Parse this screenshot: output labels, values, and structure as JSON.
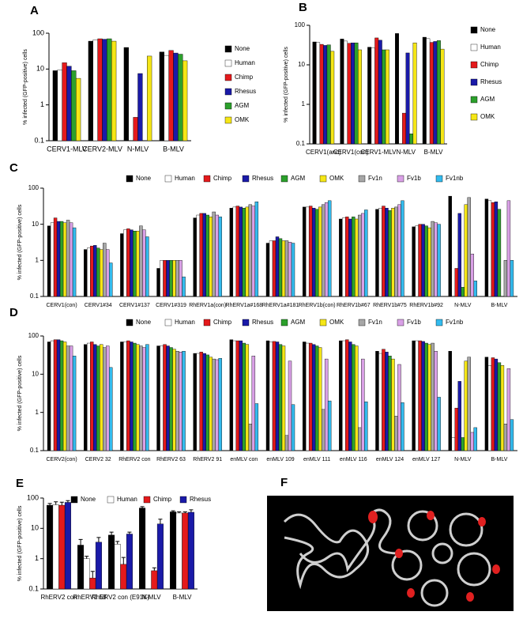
{
  "chart_data": [
    {
      "type": "bar",
      "panel": "A",
      "y_label": "% infected (GFP-positive) cells",
      "log": true,
      "legend": "right",
      "ylim": [
        0.1,
        100
      ],
      "yticks": [
        0.1,
        1,
        10,
        100
      ],
      "categories": [
        "CERV1-MLV",
        "CERV2-MLV",
        "N-MLV",
        "B-MLV"
      ],
      "series": [
        {
          "name": "None",
          "color": "#000000",
          "values": [
            9,
            60,
            40,
            30
          ]
        },
        {
          "name": "Human",
          "color": "#ffffff",
          "values": [
            9.5,
            65,
            null,
            24
          ]
        },
        {
          "name": "Chimp",
          "color": "#e41a1c",
          "values": [
            15,
            70,
            0.45,
            33
          ]
        },
        {
          "name": "Rhesus",
          "color": "#1a1aa8",
          "values": [
            12,
            68,
            7.5,
            28
          ]
        },
        {
          "name": "AGM",
          "color": "#2ca02c",
          "values": [
            9,
            70,
            null,
            26
          ]
        },
        {
          "name": "OMK",
          "color": "#f5e616",
          "values": [
            5.5,
            60,
            23,
            17
          ]
        }
      ]
    },
    {
      "type": "bar",
      "panel": "B",
      "y_label": "% infected (GFP-positive) cells",
      "log": true,
      "legend": "right",
      "ylim": [
        0.1,
        100
      ],
      "yticks": [
        0.1,
        1,
        10,
        100
      ],
      "categories": [
        "CERV1(anc)",
        "CERV1(con)",
        "CERV1-MLV",
        "N-MLV",
        "B-MLV"
      ],
      "series": [
        {
          "name": "None",
          "color": "#000000",
          "values": [
            38,
            45,
            28,
            62,
            50
          ]
        },
        {
          "name": "Human",
          "color": "#ffffff",
          "values": [
            37,
            40,
            27,
            null,
            46
          ]
        },
        {
          "name": "Chimp",
          "color": "#e41a1c",
          "values": [
            33,
            35,
            48,
            0.6,
            37
          ]
        },
        {
          "name": "Rhesus",
          "color": "#1a1aa8",
          "values": [
            31,
            36,
            42,
            20,
            39
          ]
        },
        {
          "name": "AGM",
          "color": "#2ca02c",
          "values": [
            32,
            36,
            24,
            0.18,
            41
          ]
        },
        {
          "name": "OMK",
          "color": "#f5e616",
          "values": [
            22,
            24,
            24,
            36,
            25
          ]
        }
      ]
    },
    {
      "type": "bar",
      "panel": "C",
      "y_label": "% infected (GFP-positive) cells",
      "log": true,
      "legend": "top",
      "ylim": [
        0.1,
        100
      ],
      "yticks": [
        0.1,
        1,
        10,
        100
      ],
      "categories": [
        "CERV1(con)",
        "CERV1#34",
        "CERV1#137",
        "CERV1#319",
        "RhERV1a(con)",
        "RhERV1a#168",
        "RhERV1a#181",
        "RhERV1b(con)",
        "RhERV1b#67",
        "RhERV1b#75",
        "RhERV1b#92",
        "N-MLV",
        "B-MLV"
      ],
      "series": [
        {
          "name": "None",
          "color": "#000000",
          "values": [
            9,
            2,
            5.5,
            0.6,
            15,
            28,
            3,
            30,
            14,
            26,
            8.5,
            60,
            50
          ]
        },
        {
          "name": "Human",
          "color": "#ffffff",
          "values": [
            11,
            2.2,
            7,
            1,
            18,
            30,
            3.5,
            30,
            15,
            28,
            9,
            null,
            45
          ]
        },
        {
          "name": "Chimp",
          "color": "#e41a1c",
          "values": [
            15,
            2.5,
            7.5,
            1,
            20,
            32,
            3.5,
            32,
            16,
            32,
            10,
            0.6,
            40
          ]
        },
        {
          "name": "Rhesus",
          "color": "#1a1aa8",
          "values": [
            12,
            2.6,
            7,
            1,
            20,
            30,
            4.5,
            28,
            14,
            28,
            10,
            20,
            42
          ]
        },
        {
          "name": "AGM",
          "color": "#2ca02c",
          "values": [
            12,
            2.2,
            6.5,
            1,
            18,
            28,
            4,
            26,
            16,
            24,
            9,
            0.18,
            26
          ]
        },
        {
          "name": "OMK",
          "color": "#f5e616",
          "values": [
            11,
            2,
            6.5,
            1,
            16,
            30,
            3.5,
            30,
            14,
            28,
            8,
            35,
            null
          ]
        },
        {
          "name": "Fv1n",
          "color": "#a6a6a6",
          "values": [
            13,
            3,
            9,
            1,
            22,
            35,
            3.5,
            35,
            18,
            30,
            12,
            55,
            1
          ]
        },
        {
          "name": "Fv1b",
          "color": "#d9a0e6",
          "values": [
            11,
            2,
            7,
            1,
            18,
            32,
            3.2,
            40,
            20,
            35,
            11,
            1.5,
            45
          ]
        },
        {
          "name": "Fv1nb",
          "color": "#33bbee",
          "values": [
            8,
            0.85,
            4.5,
            0.35,
            16,
            42,
            3,
            45,
            25,
            45,
            10,
            0.27,
            1
          ]
        }
      ]
    },
    {
      "type": "bar",
      "panel": "D",
      "y_label": "% infected (GFP-positive) cells",
      "log": true,
      "legend": "top",
      "ylim": [
        0.1,
        100
      ],
      "yticks": [
        0.1,
        1,
        10,
        100
      ],
      "categories": [
        "CERV2(con)",
        "CERV2 32",
        "RhERV2 con",
        "RhERV2 63",
        "RhERV2 91",
        "enMLV con",
        "enMLV 109",
        "enMLV 111",
        "enMLV 116",
        "enMLV 124",
        "enMLV 127",
        "N-MLV",
        "B-MLV"
      ],
      "series": [
        {
          "name": "None",
          "color": "#000000",
          "values": [
            70,
            60,
            70,
            55,
            35,
            80,
            75,
            70,
            75,
            40,
            75,
            40,
            28
          ]
        },
        {
          "name": "Human",
          "color": "#ffffff",
          "values": [
            75,
            65,
            70,
            55,
            35,
            75,
            70,
            65,
            75,
            35,
            75,
            0.22,
            17
          ]
        },
        {
          "name": "Chimp",
          "color": "#e41a1c",
          "values": [
            80,
            70,
            75,
            60,
            38,
            75,
            72,
            65,
            80,
            45,
            75,
            1.3,
            27
          ]
        },
        {
          "name": "Rhesus",
          "color": "#1a1aa8",
          "values": [
            80,
            60,
            70,
            55,
            35,
            75,
            70,
            60,
            70,
            38,
            72,
            6.5,
            25
          ]
        },
        {
          "name": "AGM",
          "color": "#2ca02c",
          "values": [
            75,
            55,
            65,
            50,
            32,
            65,
            60,
            55,
            60,
            30,
            65,
            0.22,
            20
          ]
        },
        {
          "name": "OMK",
          "color": "#f5e616",
          "values": [
            70,
            60,
            60,
            45,
            28,
            60,
            55,
            50,
            55,
            25,
            60,
            22,
            17
          ]
        },
        {
          "name": "Fv1n",
          "color": "#a6a6a6",
          "values": [
            55,
            50,
            55,
            40,
            25,
            0.5,
            0.25,
            1.2,
            0.4,
            0.8,
            65,
            28,
            0.5
          ]
        },
        {
          "name": "Fv1b",
          "color": "#d9a0e6",
          "values": [
            55,
            55,
            50,
            38,
            24,
            30,
            22,
            25,
            25,
            18,
            40,
            0.3,
            14
          ]
        },
        {
          "name": "Fv1nb",
          "color": "#33bbee",
          "values": [
            30,
            15,
            60,
            40,
            26,
            1.7,
            1.6,
            2,
            1.9,
            1.8,
            2.5,
            0.4,
            0.65
          ]
        }
      ]
    },
    {
      "type": "bar",
      "panel": "E",
      "y_label": "% infected (GFP-positive) cells",
      "log": true,
      "legend": "top",
      "ylim": [
        0.1,
        100
      ],
      "yticks": [
        0.1,
        1,
        10,
        100
      ],
      "categories": [
        "RhERV2 con",
        "RhERV2 58",
        "RhERV2 con (E91K)",
        "N-MLV",
        "B-MLV"
      ],
      "series": [
        {
          "name": "None",
          "color": "#000000",
          "values": [
            58,
            2.8,
            6,
            47,
            35
          ],
          "errors": [
            8,
            1.5,
            1.5,
            5,
            3
          ]
        },
        {
          "name": "Human",
          "color": "#ffffff",
          "values": [
            60,
            1,
            3,
            null,
            32
          ],
          "errors": [
            15,
            0.2,
            0.7,
            null,
            3
          ]
        },
        {
          "name": "Chimp",
          "color": "#e41a1c",
          "values": [
            58,
            0.23,
            0.65,
            0.4,
            32
          ],
          "errors": [
            15,
            0.15,
            0.45,
            0.1,
            3
          ]
        },
        {
          "name": "Rhesus",
          "color": "#1a1aa8",
          "values": [
            72,
            3.5,
            6.5,
            14,
            34
          ],
          "errors": [
            10,
            1.5,
            1,
            6,
            7
          ]
        }
      ]
    }
  ],
  "figure_f": {
    "panel": "F"
  }
}
